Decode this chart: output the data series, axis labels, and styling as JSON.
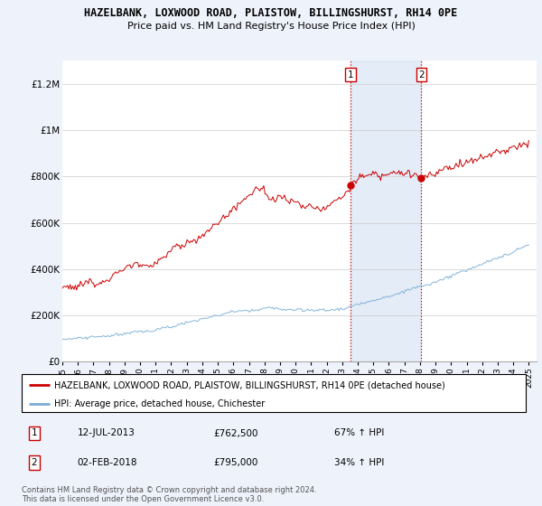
{
  "title": "HAZELBANK, LOXWOOD ROAD, PLAISTOW, BILLINGSHURST, RH14 0PE",
  "subtitle": "Price paid vs. HM Land Registry's House Price Index (HPI)",
  "red_label": "HAZELBANK, LOXWOOD ROAD, PLAISTOW, BILLINGSHURST, RH14 0PE (detached house)",
  "blue_label": "HPI: Average price, detached house, Chichester",
  "transaction1_date": "12-JUL-2013",
  "transaction1_price": "£762,500",
  "transaction1_hpi": "67% ↑ HPI",
  "transaction2_date": "02-FEB-2018",
  "transaction2_price": "£795,000",
  "transaction2_hpi": "34% ↑ HPI",
  "ylim": [
    0,
    1300000
  ],
  "yticks": [
    0,
    200000,
    400000,
    600000,
    800000,
    1000000,
    1200000
  ],
  "ytick_labels": [
    "£0",
    "£200K",
    "£400K",
    "£600K",
    "£800K",
    "£1M",
    "£1.2M"
  ],
  "year_start": 1995,
  "year_end": 2025,
  "background_color": "#eef2fb",
  "plot_bg_color": "#ffffff",
  "red_color": "#cc0000",
  "blue_color": "#7aadd4",
  "shade_color": "#dce8f5",
  "transaction1_year": 2013.53,
  "transaction2_year": 2018.09,
  "footnote": "Contains HM Land Registry data © Crown copyright and database right 2024.\nThis data is licensed under the Open Government Licence v3.0."
}
